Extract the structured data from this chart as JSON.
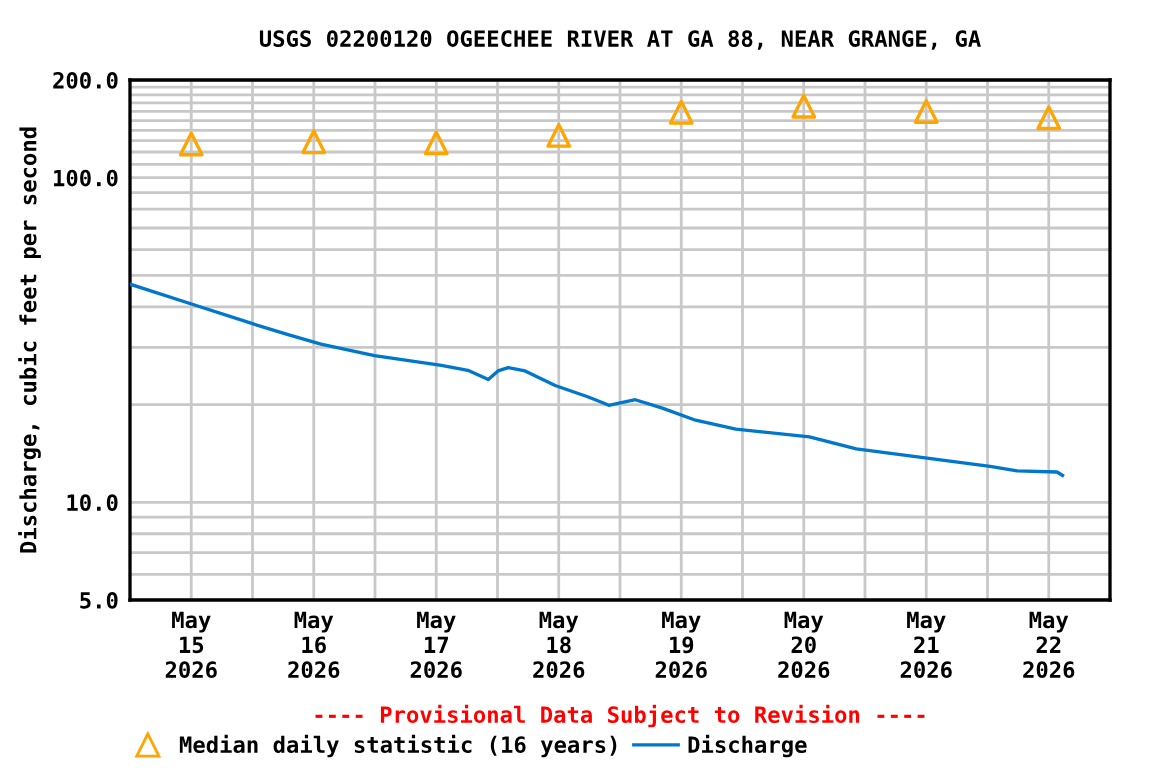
{
  "chart_data": {
    "type": "line",
    "title": "USGS 02200120 OGEECHEE RIVER AT GA 88, NEAR GRANGE, GA",
    "ylabel": "Discharge, cubic feet per second",
    "log": "y",
    "grid": true,
    "legend": "bottom",
    "annotations": [
      "---- Provisional Data Subject to Revision ----"
    ],
    "xlim": [
      "2026-05-15T00:00",
      "2026-05-23T00:00"
    ],
    "xticks": [
      {
        "value": "2026-05-15T12:00",
        "label": "May\n15\n2026"
      },
      {
        "value": "2026-05-16T00:00",
        "label": null
      },
      {
        "value": "2026-05-16T12:00",
        "label": "May\n16\n2026"
      },
      {
        "value": "2026-05-17T00:00",
        "label": null
      },
      {
        "value": "2026-05-17T12:00",
        "label": "May\n17\n2026"
      },
      {
        "value": "2026-05-18T00:00",
        "label": null
      },
      {
        "value": "2026-05-18T12:00",
        "label": "May\n18\n2026"
      },
      {
        "value": "2026-05-19T00:00",
        "label": null
      },
      {
        "value": "2026-05-19T12:00",
        "label": "May\n19\n2026"
      },
      {
        "value": "2026-05-20T00:00",
        "label": null
      },
      {
        "value": "2026-05-20T12:00",
        "label": "May\n20\n2026"
      },
      {
        "value": "2026-05-21T00:00",
        "label": null
      },
      {
        "value": "2026-05-21T12:00",
        "label": "May\n21\n2026"
      },
      {
        "value": "2026-05-22T00:00",
        "label": null
      },
      {
        "value": "2026-05-22T12:00",
        "label": "May\n22\n2026"
      }
    ],
    "ylim": [
      5,
      200
    ],
    "yticks": [
      {
        "value": 5,
        "label": "5.0"
      },
      {
        "value": 6,
        "label": null
      },
      {
        "value": 7,
        "label": null
      },
      {
        "value": 8,
        "label": null
      },
      {
        "value": 9,
        "label": null
      },
      {
        "value": 10,
        "label": "10.0"
      },
      {
        "value": 20,
        "label": null
      },
      {
        "value": 30,
        "label": null
      },
      {
        "value": 40,
        "label": null
      },
      {
        "value": 50,
        "label": null
      },
      {
        "value": 60,
        "label": null
      },
      {
        "value": 70,
        "label": null
      },
      {
        "value": 80,
        "label": null
      },
      {
        "value": 90,
        "label": null
      },
      {
        "value": 100,
        "label": "100.0"
      },
      {
        "value": 110,
        "label": null
      },
      {
        "value": 120,
        "label": null
      },
      {
        "value": 130,
        "label": null
      },
      {
        "value": 140,
        "label": null
      },
      {
        "value": 150,
        "label": null
      },
      {
        "value": 160,
        "label": null
      },
      {
        "value": 170,
        "label": null
      },
      {
        "value": 180,
        "label": null
      },
      {
        "value": 190,
        "label": null
      },
      {
        "value": 200,
        "label": "200.0"
      }
    ],
    "series": [
      {
        "name": "Median daily statistic (16 years)",
        "type": "scatter",
        "marker": "triangle",
        "color": "#ffa500",
        "x": [
          "2026-05-15T12:00",
          "2026-05-16T12:00",
          "2026-05-17T12:00",
          "2026-05-18T12:00",
          "2026-05-19T12:00",
          "2026-05-20T12:00",
          "2026-05-21T12:00",
          "2026-05-22T12:00"
        ],
        "values": [
          127,
          129,
          128,
          135,
          159,
          166,
          160,
          153
        ]
      },
      {
        "name": "Discharge",
        "line_style": "solid",
        "color": "#0077cc",
        "x": [
          "2026-05-15T00:00",
          "2026-05-15T12:30",
          "2026-05-16T00:00",
          "2026-05-16T06:48",
          "2026-05-16T13:24",
          "2026-05-16T23:54",
          "2026-05-17T13:00",
          "2026-05-17T18:12",
          "2026-05-17T22:12",
          "2026-05-18T00:06",
          "2026-05-18T02:06",
          "2026-05-18T05:24",
          "2026-05-18T11:18",
          "2026-05-18T17:48",
          "2026-05-18T20:30",
          "2026-05-18T21:48",
          "2026-05-19T03:00",
          "2026-05-19T08:18",
          "2026-05-19T14:48",
          "2026-05-19T22:42",
          "2026-05-20T13:06",
          "2026-05-20T22:18",
          "2026-05-21T08:48",
          "2026-05-22T00:30",
          "2026-05-22T05:48",
          "2026-05-22T13:36",
          "2026-05-22T14:42"
        ],
        "values": [
          47,
          40.6,
          35.5,
          32.9,
          30.7,
          28.3,
          26.4,
          25.5,
          23.9,
          25.4,
          26.0,
          25.4,
          22.9,
          21.1,
          20.3,
          19.9,
          20.7,
          19.5,
          17.9,
          16.8,
          15.9,
          14.6,
          13.9,
          12.9,
          12.5,
          12.4,
          12.1
        ]
      }
    ]
  }
}
